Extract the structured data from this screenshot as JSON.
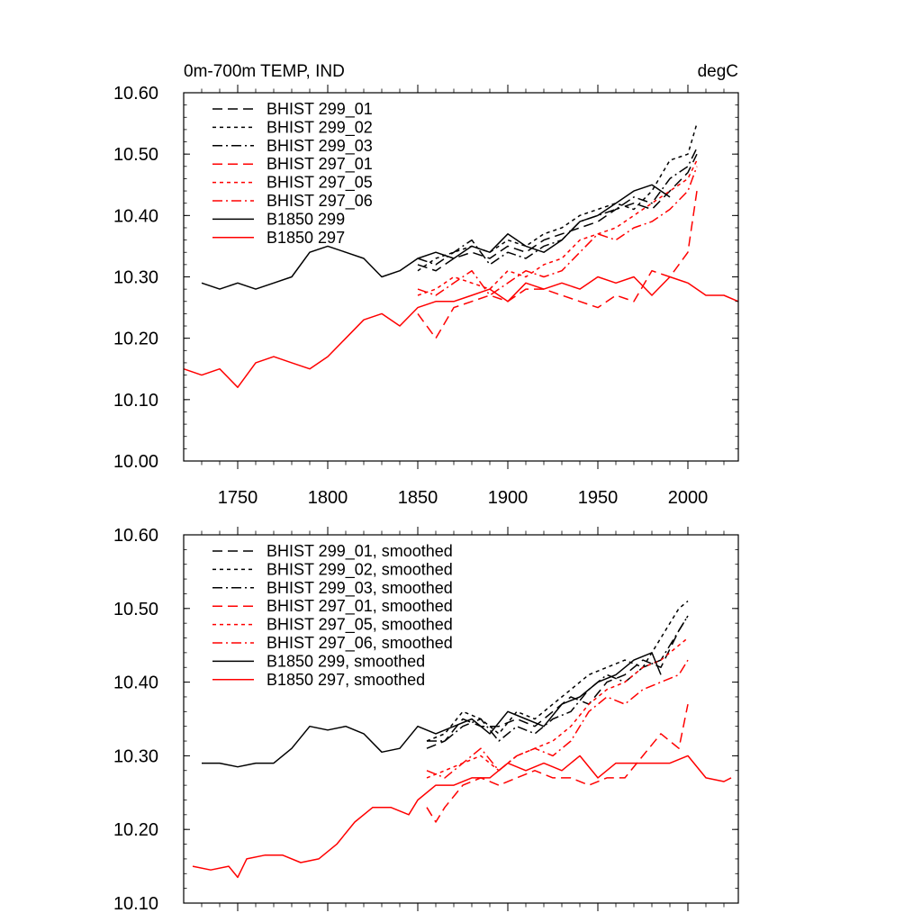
{
  "colors": {
    "black": "#000000",
    "red": "#ff0000"
  },
  "chart_data": [
    {
      "type": "line",
      "title_left": "0m-700m TEMP, IND",
      "title_right": "degC",
      "xlim": [
        1720,
        2028
      ],
      "ylim": [
        10.0,
        10.6
      ],
      "x_ticks": [
        1750,
        1800,
        1850,
        1900,
        1950,
        2000
      ],
      "x_tick_labels": [
        "1750",
        "1800",
        "1850",
        "1900",
        "1950",
        "2000"
      ],
      "y_ticks": [
        10.0,
        10.1,
        10.2,
        10.3,
        10.4,
        10.5,
        10.6
      ],
      "y_tick_labels": [
        "10.00",
        "10.10",
        "10.20",
        "10.30",
        "10.40",
        "10.50",
        "10.60"
      ],
      "legend_position": "top-left",
      "series": [
        {
          "name": "BHIST 299_01",
          "color": "black",
          "dash": "long-dash",
          "x": [
            1850,
            1860,
            1870,
            1880,
            1890,
            1900,
            1910,
            1920,
            1930,
            1940,
            1950,
            1960,
            1970,
            1980,
            1990,
            2000,
            2005
          ],
          "values": [
            10.32,
            10.31,
            10.33,
            10.34,
            10.33,
            10.35,
            10.34,
            10.36,
            10.37,
            10.38,
            10.39,
            10.41,
            10.42,
            10.41,
            10.44,
            10.47,
            10.5
          ]
        },
        {
          "name": "BHIST 299_02",
          "color": "black",
          "dash": "short-dash",
          "x": [
            1850,
            1860,
            1870,
            1880,
            1890,
            1900,
            1910,
            1920,
            1930,
            1940,
            1950,
            1960,
            1970,
            1980,
            1990,
            2000,
            2005
          ],
          "values": [
            10.31,
            10.33,
            10.34,
            10.35,
            10.34,
            10.36,
            10.35,
            10.37,
            10.38,
            10.4,
            10.41,
            10.42,
            10.41,
            10.44,
            10.49,
            10.5,
            10.55
          ]
        },
        {
          "name": "BHIST 299_03",
          "color": "black",
          "dash": "dash-dot",
          "x": [
            1850,
            1860,
            1870,
            1880,
            1890,
            1900,
            1910,
            1920,
            1930,
            1940,
            1950,
            1960,
            1970,
            1980,
            1990,
            2000,
            2005
          ],
          "values": [
            10.33,
            10.32,
            10.34,
            10.36,
            10.32,
            10.34,
            10.33,
            10.35,
            10.36,
            10.39,
            10.4,
            10.41,
            10.43,
            10.42,
            10.46,
            10.48,
            10.51
          ]
        },
        {
          "name": "BHIST 297_01",
          "color": "red",
          "dash": "long-dash",
          "x": [
            1850,
            1860,
            1870,
            1880,
            1890,
            1900,
            1910,
            1920,
            1930,
            1940,
            1950,
            1960,
            1970,
            1980,
            1990,
            2000,
            2005
          ],
          "values": [
            10.24,
            10.2,
            10.25,
            10.26,
            10.27,
            10.26,
            10.28,
            10.28,
            10.27,
            10.26,
            10.25,
            10.27,
            10.26,
            10.31,
            10.3,
            10.34,
            10.44
          ]
        },
        {
          "name": "BHIST 297_05",
          "color": "red",
          "dash": "short-dash",
          "x": [
            1850,
            1860,
            1870,
            1880,
            1890,
            1900,
            1910,
            1920,
            1930,
            1940,
            1950,
            1960,
            1970,
            1980,
            1990,
            2000,
            2005
          ],
          "values": [
            10.27,
            10.28,
            10.3,
            10.29,
            10.28,
            10.31,
            10.3,
            10.32,
            10.33,
            10.36,
            10.37,
            10.38,
            10.4,
            10.42,
            10.44,
            10.46,
            10.49
          ]
        },
        {
          "name": "BHIST 297_06",
          "color": "red",
          "dash": "dash-dot",
          "x": [
            1850,
            1860,
            1870,
            1880,
            1890,
            1900,
            1910,
            1920,
            1930,
            1940,
            1950,
            1960,
            1970,
            1980,
            1990,
            2000,
            2005
          ],
          "values": [
            10.28,
            10.27,
            10.29,
            10.31,
            10.27,
            10.29,
            10.31,
            10.3,
            10.31,
            10.34,
            10.37,
            10.36,
            10.38,
            10.39,
            10.41,
            10.44,
            10.48
          ]
        },
        {
          "name": "B1850 299",
          "color": "black",
          "dash": "solid",
          "x": [
            1730,
            1740,
            1750,
            1760,
            1770,
            1780,
            1790,
            1800,
            1810,
            1820,
            1830,
            1840,
            1850,
            1860,
            1870,
            1880,
            1890,
            1900,
            1910,
            1920,
            1930,
            1940,
            1950,
            1960,
            1970,
            1980,
            1990
          ],
          "values": [
            10.29,
            10.28,
            10.29,
            10.28,
            10.29,
            10.3,
            10.34,
            10.35,
            10.34,
            10.33,
            10.3,
            10.31,
            10.33,
            10.34,
            10.33,
            10.35,
            10.34,
            10.37,
            10.35,
            10.34,
            10.36,
            10.39,
            10.4,
            10.42,
            10.44,
            10.45,
            10.43
          ]
        },
        {
          "name": "B1850 297",
          "color": "red",
          "dash": "solid",
          "x": [
            1720,
            1730,
            1740,
            1750,
            1760,
            1770,
            1780,
            1790,
            1800,
            1810,
            1820,
            1830,
            1840,
            1850,
            1860,
            1870,
            1880,
            1890,
            1900,
            1910,
            1920,
            1930,
            1940,
            1950,
            1960,
            1970,
            1980,
            1990,
            2000,
            2010,
            2020,
            2028
          ],
          "values": [
            10.15,
            10.14,
            10.15,
            10.12,
            10.16,
            10.17,
            10.16,
            10.15,
            10.17,
            10.2,
            10.23,
            10.24,
            10.22,
            10.25,
            10.26,
            10.26,
            10.27,
            10.28,
            10.26,
            10.29,
            10.28,
            10.29,
            10.28,
            10.3,
            10.29,
            10.3,
            10.27,
            10.3,
            10.29,
            10.27,
            10.27,
            10.26
          ]
        }
      ]
    },
    {
      "type": "line",
      "xlim": [
        1720,
        2028
      ],
      "ylim": [
        10.1,
        10.6
      ],
      "x_ticks": [
        1750,
        1800,
        1850,
        1900,
        1950,
        2000
      ],
      "y_ticks": [
        10.1,
        10.2,
        10.3,
        10.4,
        10.5,
        10.6
      ],
      "y_tick_labels": [
        "10.10",
        "10.20",
        "10.30",
        "10.40",
        "10.50",
        "10.60"
      ],
      "legend_position": "top-left",
      "series": [
        {
          "name": "BHIST 299_01, smoothed",
          "color": "black",
          "dash": "long-dash",
          "x": [
            1855,
            1865,
            1875,
            1885,
            1895,
            1905,
            1915,
            1925,
            1935,
            1945,
            1955,
            1965,
            1975,
            1985,
            1995,
            2000
          ],
          "values": [
            10.31,
            10.32,
            10.35,
            10.34,
            10.34,
            10.35,
            10.34,
            10.36,
            10.38,
            10.37,
            10.4,
            10.41,
            10.43,
            10.42,
            10.47,
            10.49
          ]
        },
        {
          "name": "BHIST 299_02, smoothed",
          "color": "black",
          "dash": "short-dash",
          "x": [
            1855,
            1865,
            1875,
            1885,
            1895,
            1905,
            1915,
            1925,
            1935,
            1945,
            1955,
            1965,
            1975,
            1985,
            1995,
            2000
          ],
          "values": [
            10.32,
            10.33,
            10.36,
            10.35,
            10.33,
            10.36,
            10.35,
            10.37,
            10.39,
            10.41,
            10.42,
            10.43,
            10.42,
            10.46,
            10.5,
            10.51
          ]
        },
        {
          "name": "BHIST 299_03, smoothed",
          "color": "black",
          "dash": "dash-dot",
          "x": [
            1855,
            1865,
            1875,
            1885,
            1895,
            1905,
            1915,
            1925,
            1935,
            1945,
            1955,
            1965,
            1975,
            1985,
            1995,
            2000
          ],
          "values": [
            10.32,
            10.32,
            10.34,
            10.35,
            10.32,
            10.34,
            10.33,
            10.35,
            10.36,
            10.39,
            10.41,
            10.4,
            10.42,
            10.43,
            10.47,
            10.49
          ]
        },
        {
          "name": "BHIST 297_01, smoothed",
          "color": "red",
          "dash": "long-dash",
          "x": [
            1855,
            1860,
            1865,
            1875,
            1885,
            1895,
            1905,
            1915,
            1925,
            1935,
            1945,
            1955,
            1965,
            1975,
            1985,
            1995,
            2000
          ],
          "values": [
            10.23,
            10.21,
            10.23,
            10.26,
            10.27,
            10.26,
            10.27,
            10.28,
            10.27,
            10.27,
            10.26,
            10.27,
            10.27,
            10.3,
            10.33,
            10.31,
            10.37
          ]
        },
        {
          "name": "BHIST 297_05, smoothed",
          "color": "red",
          "dash": "short-dash",
          "x": [
            1855,
            1865,
            1875,
            1885,
            1895,
            1905,
            1915,
            1925,
            1935,
            1945,
            1955,
            1965,
            1975,
            1985,
            1995,
            2000
          ],
          "values": [
            10.27,
            10.28,
            10.29,
            10.3,
            10.28,
            10.3,
            10.31,
            10.32,
            10.34,
            10.37,
            10.39,
            10.4,
            10.42,
            10.43,
            10.45,
            10.46
          ]
        },
        {
          "name": "BHIST 297_06, smoothed",
          "color": "red",
          "dash": "dash-dot",
          "x": [
            1855,
            1865,
            1875,
            1885,
            1895,
            1905,
            1915,
            1925,
            1935,
            1945,
            1955,
            1965,
            1975,
            1985,
            1995,
            2000
          ],
          "values": [
            10.28,
            10.27,
            10.29,
            10.31,
            10.28,
            10.3,
            10.31,
            10.3,
            10.32,
            10.36,
            10.38,
            10.37,
            10.39,
            10.4,
            10.41,
            10.43
          ]
        },
        {
          "name": "B1850 299, smoothed",
          "color": "black",
          "dash": "solid",
          "x": [
            1730,
            1740,
            1750,
            1760,
            1770,
            1780,
            1790,
            1800,
            1810,
            1820,
            1830,
            1840,
            1850,
            1860,
            1870,
            1880,
            1890,
            1900,
            1910,
            1920,
            1930,
            1940,
            1950,
            1960,
            1970,
            1980,
            1985
          ],
          "values": [
            10.29,
            10.29,
            10.285,
            10.29,
            10.29,
            10.31,
            10.34,
            10.335,
            10.34,
            10.33,
            10.305,
            10.31,
            10.34,
            10.33,
            10.34,
            10.35,
            10.33,
            10.36,
            10.35,
            10.34,
            10.37,
            10.38,
            10.4,
            10.41,
            10.43,
            10.44,
            10.41
          ]
        },
        {
          "name": "B1850 297, smoothed",
          "color": "red",
          "dash": "solid",
          "x": [
            1725,
            1735,
            1745,
            1750,
            1755,
            1765,
            1775,
            1785,
            1795,
            1805,
            1815,
            1825,
            1835,
            1845,
            1850,
            1860,
            1870,
            1880,
            1890,
            1900,
            1910,
            1920,
            1930,
            1940,
            1950,
            1960,
            1970,
            1980,
            1990,
            2000,
            2010,
            2020,
            2024
          ],
          "values": [
            10.15,
            10.145,
            10.15,
            10.135,
            10.16,
            10.165,
            10.165,
            10.155,
            10.16,
            10.18,
            10.21,
            10.23,
            10.23,
            10.22,
            10.24,
            10.26,
            10.26,
            10.27,
            10.27,
            10.29,
            10.28,
            10.29,
            10.28,
            10.3,
            10.27,
            10.29,
            10.29,
            10.29,
            10.29,
            10.3,
            10.27,
            10.265,
            10.27
          ]
        }
      ]
    }
  ]
}
